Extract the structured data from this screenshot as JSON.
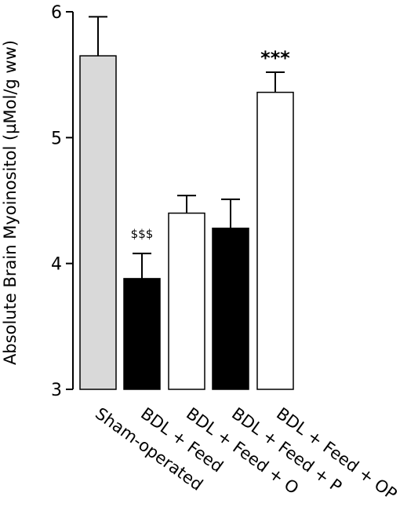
{
  "chart_data": {
    "type": "bar",
    "title": "",
    "xlabel": "",
    "ylabel": "Absolute Brain Myoinositol (µMol/g ww)",
    "ylim": [
      3,
      6
    ],
    "yticks": [
      "3",
      "4",
      "5",
      "6"
    ],
    "grid": false,
    "categories": [
      "Sham-operated",
      "BDL + Feed",
      "BDL + Feed + O",
      "BDL + Feed + P",
      "BDL + Feed + OP"
    ],
    "values": [
      5.65,
      3.88,
      4.4,
      4.28,
      5.36
    ],
    "error_upper": [
      5.96,
      4.08,
      4.54,
      4.51,
      5.52
    ],
    "bar_colors": [
      "#d9d9d9",
      "#000000",
      "#ffffff",
      "#000000",
      "#ffffff"
    ],
    "annotations": [
      {
        "category_index": 1,
        "text": "$$$"
      },
      {
        "category_index": 4,
        "text": "***"
      }
    ]
  }
}
